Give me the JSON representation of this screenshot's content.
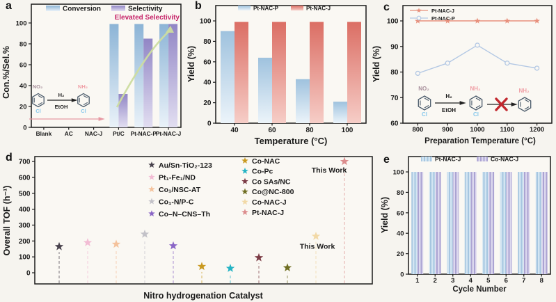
{
  "chart_data": [
    {
      "panel_label": "a",
      "type": "bar",
      "ylabel": "Con.%/Sel.%",
      "ylim": [
        0,
        118
      ],
      "yticks": [
        0,
        20,
        40,
        60,
        80,
        100
      ],
      "categories": [
        "Blank",
        "AC",
        "NAC-J",
        "Pt/C",
        "Pt-NAC-P",
        "Pt-NAC-J"
      ],
      "series": [
        {
          "name": "Conversion",
          "values": [
            0,
            0,
            0,
            99,
            99,
            99
          ],
          "color_top": "#8cb4d6",
          "color_bottom": "#eaf2f9"
        },
        {
          "name": "Selectivity",
          "values": [
            0,
            0,
            0,
            32,
            85,
            99
          ],
          "color_top": "#9186c5",
          "color_bottom": "#e2def1"
        }
      ],
      "legend_position": "top",
      "annotation": {
        "text": "Elevated Selectivity",
        "color": "#c62368"
      },
      "arrow_color": "#ccdc9f",
      "reaction": {
        "reactant_top": "NO₂",
        "reactant_bottom": "Cl",
        "cond_top": "H₂",
        "cond_bottom": "EtOH",
        "product_top": "NH₂",
        "product_bottom": "Cl",
        "progress_arrow_color": "#e89aa4"
      }
    },
    {
      "panel_label": "b",
      "type": "bar",
      "ylabel": "Yield (%)",
      "xlabel": "Temperature (°C)",
      "ylim": [
        0,
        115
      ],
      "yticks": [
        0,
        20,
        40,
        60,
        80,
        100
      ],
      "categories": [
        "40",
        "60",
        "80",
        "100"
      ],
      "series": [
        {
          "name": "Pt-NAC-P",
          "values": [
            90,
            64,
            43,
            21
          ],
          "color_top": "#9fc2de",
          "color_bottom": "#ecf4fa"
        },
        {
          "name": "Pt-NAC-J",
          "values": [
            99,
            99,
            99,
            99
          ],
          "color_top": "#db6e64",
          "color_bottom": "#f6cdc7"
        }
      ],
      "legend_position": "top"
    },
    {
      "panel_label": "c",
      "type": "line",
      "ylabel": "Yield (%)",
      "xlabel": "Preparation Temperature (°C)",
      "ylim": [
        60,
        106
      ],
      "yticks": [
        60,
        70,
        80,
        90,
        100
      ],
      "x": [
        800,
        900,
        1000,
        1100,
        1200
      ],
      "series": [
        {
          "name": "Pt-NAC-J",
          "marker": "star",
          "color": "#e8907c",
          "values": [
            100,
            100,
            100,
            100,
            100
          ]
        },
        {
          "name": "Pt-NAC-P",
          "marker": "circle",
          "color": "#b3c8e4",
          "values": [
            79.5,
            83.5,
            90.5,
            83.5,
            81.5
          ]
        }
      ],
      "legend_position": "top-left",
      "reaction": {
        "reactant_top": "NO₂",
        "reactant_bottom": "Cl",
        "cond_top": "H₂",
        "cond_bottom": "EtOH",
        "intermediate_top": "NH₂",
        "intermediate_bottom": "Cl",
        "product_top": "NH₂",
        "cross_color": "#c2282e",
        "meaning": "dehalogenation blocked"
      }
    },
    {
      "panel_label": "d",
      "type": "scatter",
      "ylabel": "Overall TOF (h⁻¹)",
      "xlabel": "Nitro hydrogenation Catalyst",
      "ylim": [
        -70,
        731
      ],
      "yticks": [
        0,
        100,
        200,
        300,
        400,
        500,
        600,
        700
      ],
      "points": [
        {
          "label": "Au/Sn-TiO₂-123",
          "value": 165,
          "color": "#48424c"
        },
        {
          "label": "Pt₁-Fe₁/ND",
          "value": 190,
          "color": "#f2bcd4"
        },
        {
          "label": "Co₁/NSC-AT",
          "value": 180,
          "color": "#f4c29c"
        },
        {
          "label": "Co₁-N/P-C",
          "value": 243,
          "color": "#c3c2c8"
        },
        {
          "label": "Co–N–CNS–Th",
          "value": 170,
          "color": "#8a66c6"
        },
        {
          "label": "Co-NAC",
          "value": 40,
          "color": "#c9991f"
        },
        {
          "label": "Co-Pc",
          "value": 28,
          "color": "#23b3c4"
        },
        {
          "label": "Co SAs/NC",
          "value": 95,
          "color": "#7b3b45"
        },
        {
          "label": "Co@NC-800",
          "value": 32,
          "color": "#6f6e22"
        },
        {
          "label": "Co-NAC-J",
          "value": 230,
          "color": "#f2d9a6",
          "note": "This Work"
        },
        {
          "label": "Pt-NAC-J",
          "value": 700,
          "color": "#dc8d8d",
          "note": "This Work"
        }
      ],
      "legend_columns": [
        [
          0,
          1,
          2,
          3,
          4
        ],
        [
          5,
          6,
          7,
          8,
          9,
          10
        ]
      ]
    },
    {
      "panel_label": "e",
      "type": "bar",
      "striped": true,
      "ylabel": "Yield (%)",
      "xlabel": "Cycle Number",
      "ylim": [
        0,
        115
      ],
      "yticks": [
        0,
        20,
        40,
        60,
        80,
        100
      ],
      "categories": [
        "1",
        "2",
        "3",
        "4",
        "5",
        "6",
        "7",
        "8"
      ],
      "series": [
        {
          "name": "Pt-NAC-J",
          "values": [
            100,
            100,
            100,
            100,
            100,
            100,
            100,
            100
          ],
          "color_a": "#d3e5f2",
          "color_b": "#a6c6e0"
        },
        {
          "name": "Co-NAC-J",
          "values": [
            100,
            100,
            100,
            100,
            100,
            100,
            100,
            100
          ],
          "color_a": "#dcd8ee",
          "color_b": "#aba3d2"
        }
      ],
      "legend_position": "top"
    }
  ]
}
